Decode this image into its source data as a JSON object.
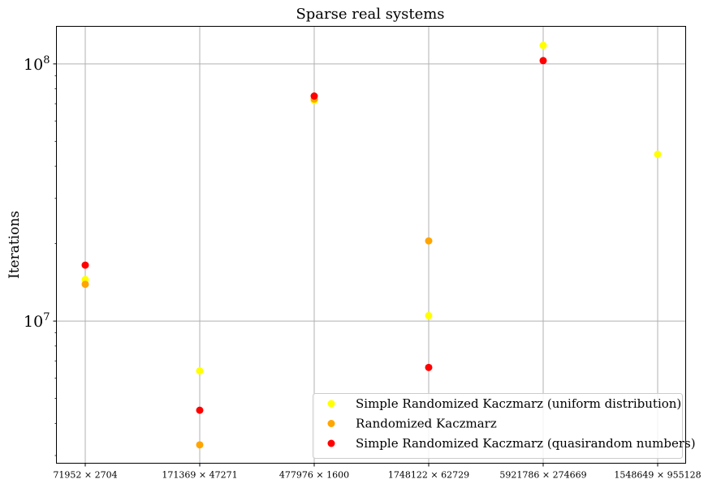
{
  "chart_data": {
    "type": "scatter",
    "title": "Sparse real systems",
    "xlabel": "",
    "ylabel": "Iterations",
    "yscale": "log",
    "ylim": [
      2800000,
      140000000
    ],
    "grid": true,
    "legend_position": "lower-right",
    "categories": [
      "71952 × 2704",
      "171369 × 47271",
      "477976 × 1600",
      "1748122 × 62729",
      "5921786 × 274669",
      "1548649 × 955128"
    ],
    "ytick_labels": [
      {
        "value": 10000000,
        "base": "10",
        "exp": "7"
      },
      {
        "value": 100000000,
        "base": "10",
        "exp": "8"
      }
    ],
    "series": [
      {
        "name": "Simple Randomized Kaczmarz (uniform distribution)",
        "color": "#ffff00",
        "values": [
          14500000,
          6400000,
          72000000,
          10500000,
          118000000,
          44500000
        ]
      },
      {
        "name": "Randomized Kaczmarz",
        "color": "#ffa500",
        "values": [
          13900000,
          3300000,
          73000000,
          20500000,
          null,
          null
        ]
      },
      {
        "name": "Simple Randomized Kaczmarz (quasirandom numbers)",
        "color": "#ff0000",
        "values": [
          16500000,
          4500000,
          75000000,
          6600000,
          103000000,
          null
        ]
      }
    ]
  }
}
